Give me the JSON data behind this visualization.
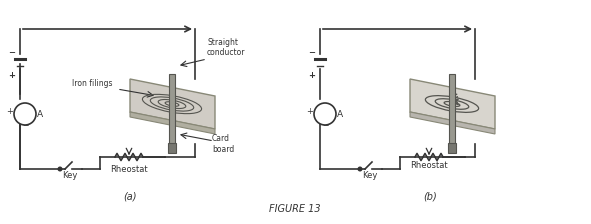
{
  "title": "FIGURE 13",
  "label_a": "(a)",
  "label_b": "(b)",
  "label_straight_conductor": "Straight\nconductor",
  "label_iron_filings": "Iron filings",
  "label_card_board": "Card\nboard",
  "label_key": "Key",
  "label_rheostat": "Rheostat",
  "label_A": "A",
  "bg_color": "#ffffff",
  "line_color": "#333333",
  "board_color": "#d0ccc0",
  "board_edge_color": "#999988",
  "conductor_color": "#888888",
  "circuit_color": "#444444"
}
